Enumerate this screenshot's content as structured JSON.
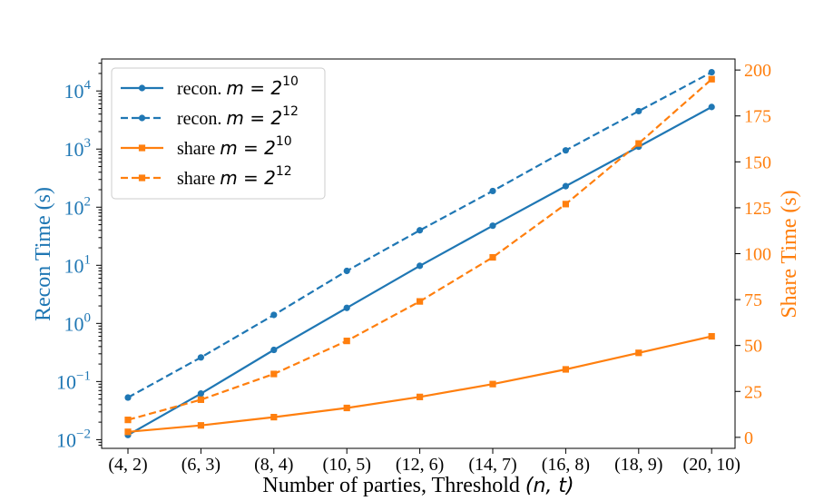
{
  "chart_data": {
    "type": "line",
    "title": "",
    "xlabel": "Number of parties, Threshold",
    "xlabel_math": "(n, t)",
    "ylabel_left": "Recon Time (s)",
    "ylabel_right": "Share Time (s)",
    "categories": [
      "(4, 2)",
      "(6, 3)",
      "(8, 4)",
      "(10, 5)",
      "(12, 6)",
      "(14, 7)",
      "(16, 8)",
      "(18, 9)",
      "(20, 10)"
    ],
    "left_axis": {
      "scale": "log",
      "ylim_log10": [
        -2.15,
        4.55
      ],
      "ticks": [
        {
          "base": "10",
          "exp": "−2",
          "log": -2
        },
        {
          "base": "10",
          "exp": "−1",
          "log": -1
        },
        {
          "base": "10",
          "exp": "0",
          "log": 0
        },
        {
          "base": "10",
          "exp": "1",
          "log": 1
        },
        {
          "base": "10",
          "exp": "2",
          "log": 2
        },
        {
          "base": "10",
          "exp": "3",
          "log": 3
        },
        {
          "base": "10",
          "exp": "4",
          "log": 4
        }
      ]
    },
    "right_axis": {
      "scale": "linear",
      "ylim": [
        -6,
        206
      ],
      "ticks": [
        0,
        25,
        50,
        75,
        100,
        125,
        150,
        175,
        200
      ]
    },
    "series": [
      {
        "name": "recon. m = 2^10",
        "legend_text": "recon.",
        "legend_math": "m = 2",
        "legend_sup": "10",
        "axis": "left",
        "style": "solid",
        "marker": "circle",
        "color": "#1f77b4",
        "values": [
          0.012,
          0.062,
          0.35,
          1.85,
          9.8,
          48,
          230,
          1100,
          5300
        ]
      },
      {
        "name": "recon. m = 2^12",
        "legend_text": "recon.",
        "legend_math": "m = 2",
        "legend_sup": "12",
        "axis": "left",
        "style": "dashed",
        "marker": "circle",
        "color": "#1f77b4",
        "values": [
          0.053,
          0.26,
          1.4,
          8.0,
          40,
          190,
          950,
          4500,
          21000
        ]
      },
      {
        "name": "share m = 2^10",
        "legend_text": "share",
        "legend_math": "m = 2",
        "legend_sup": "10",
        "axis": "right",
        "style": "solid",
        "marker": "square",
        "color": "#ff7f0e",
        "values": [
          3,
          6.5,
          11,
          16,
          22,
          29,
          37,
          46,
          55
        ]
      },
      {
        "name": "share m = 2^12",
        "legend_text": "share",
        "legend_math": "m = 2",
        "legend_sup": "12",
        "axis": "right",
        "style": "dashed",
        "marker": "square",
        "color": "#ff7f0e",
        "values": [
          9.5,
          20.5,
          34.5,
          52.5,
          74,
          98,
          127,
          160,
          195
        ]
      }
    ],
    "legend_position": "upper-left",
    "colors": {
      "left_axis": "#1f77b4",
      "right_axis": "#ff7f0e",
      "axes": "#000000"
    }
  }
}
